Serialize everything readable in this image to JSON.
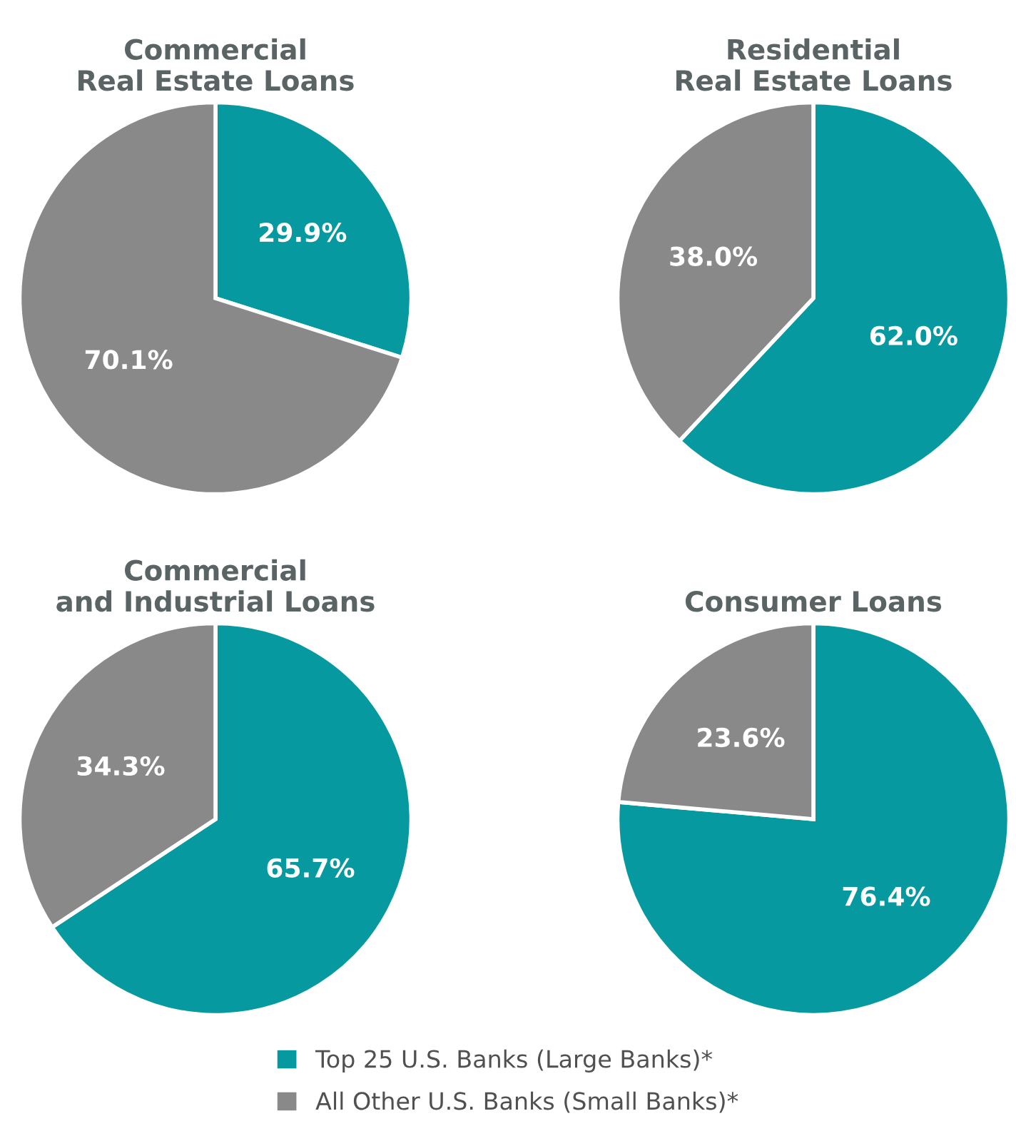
{
  "chart_data": [
    {
      "type": "pie",
      "title": "Commercial\nReal Estate Loans",
      "categories": [
        "Top 25 U.S. Banks (Large Banks)*",
        "All Other U.S. Banks (Small Banks)*"
      ],
      "values": [
        29.9,
        70.1
      ],
      "colors": [
        "#069aa0",
        "#898989"
      ],
      "value_labels": [
        "29.9%",
        "70.1%"
      ],
      "legend": "bottom"
    },
    {
      "type": "pie",
      "title": "Residential\nReal Estate Loans",
      "categories": [
        null,
        null
      ],
      "values": [
        62.0,
        38.0
      ],
      "colors": [
        "#069aa0",
        "#898989"
      ],
      "value_labels": [
        "62.0%",
        "38.0%"
      ]
    },
    {
      "type": "pie",
      "title": "Commercial\nand Industrial Loans",
      "categories": [
        null,
        null
      ],
      "values": [
        65.7,
        34.3
      ],
      "colors": [
        "#069aa0",
        "#898989"
      ],
      "value_labels": [
        "65.7%",
        "34.3%"
      ]
    },
    {
      "type": "pie",
      "title": "Consumer Loans",
      "categories": [
        null,
        null
      ],
      "values": [
        76.4,
        23.6
      ],
      "colors": [
        "#069aa0",
        "#898989"
      ],
      "value_labels": [
        "76.4%",
        "23.6%"
      ]
    }
  ]
}
